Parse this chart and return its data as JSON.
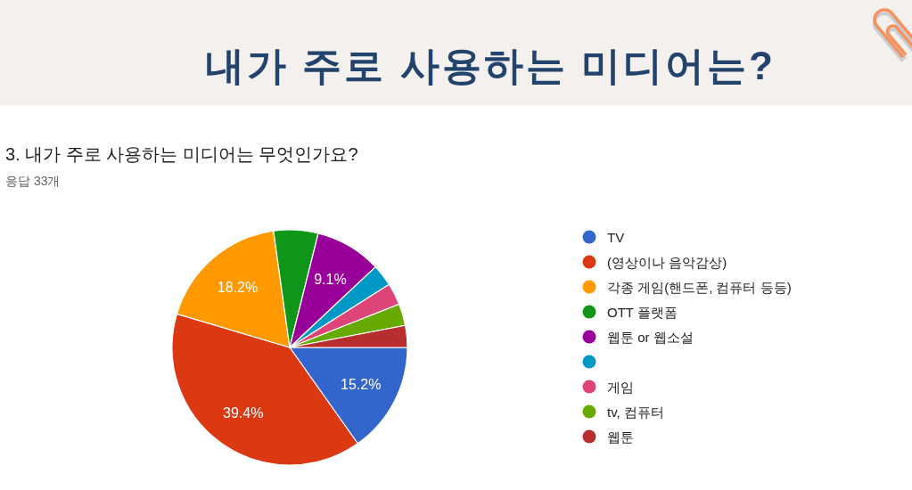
{
  "chart_data": {
    "type": "pie",
    "title": "내가 주로 사용하는 미디어는?",
    "subtitle": "3. 내가 주로 사용하는 미디어는 무엇인가요?",
    "annotations": [
      "응답 33개"
    ],
    "categories": [
      "TV",
      "(영상이나 음악감상)",
      "각종 게임(핸드폰, 컴퓨터 등등)",
      "OTT 플랫폼",
      "웹툰 or 웹소설",
      null,
      "게임",
      "tv, 컴퓨터",
      "웹툰"
    ],
    "values": [
      15.2,
      39.4,
      18.2,
      6.1,
      9.1,
      3.0,
      3.0,
      3.0,
      3.0
    ],
    "colors": [
      "#3366cc",
      "#dc3912",
      "#ff9900",
      "#109618",
      "#990099",
      "#0099c6",
      "#dd4477",
      "#66aa00",
      "#b82e2e"
    ],
    "value_labels": [
      "15.2%",
      "39.4%",
      "18.2%",
      null,
      "9.1%",
      null,
      null,
      null,
      null
    ],
    "legend": "right"
  }
}
